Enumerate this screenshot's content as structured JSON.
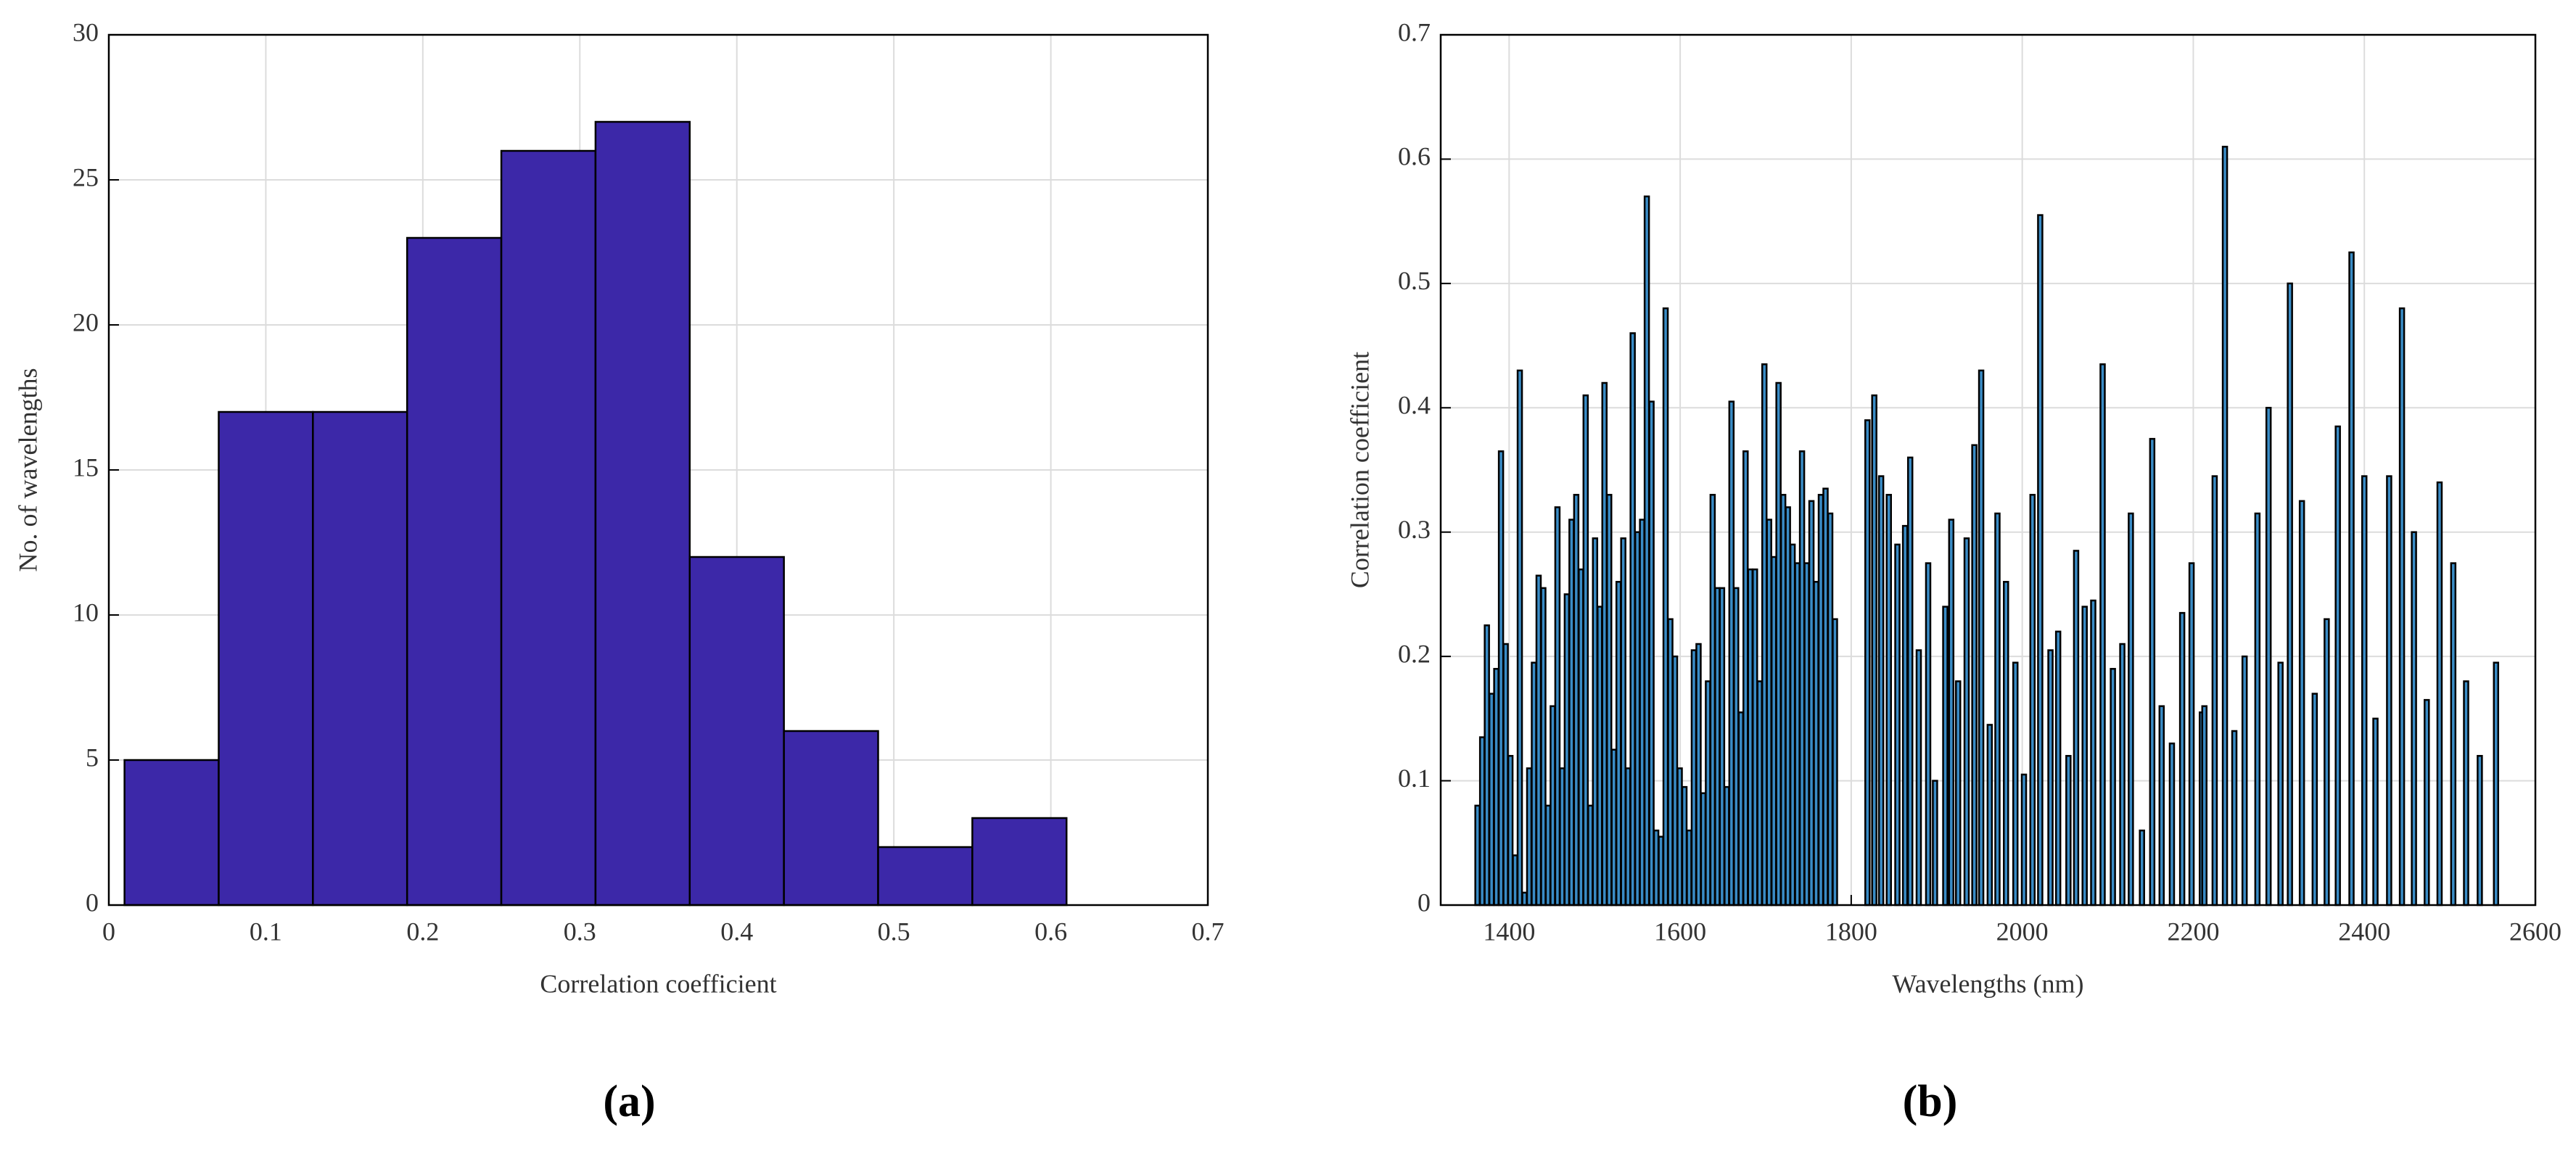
{
  "chart_data": [
    {
      "type": "histogram",
      "panel_label": "(a)",
      "xlabel": "Correlation coefficient",
      "ylabel": "No. of wavelengths",
      "bins": [
        0.01,
        0.07,
        0.13,
        0.19,
        0.25,
        0.31,
        0.37,
        0.43,
        0.49,
        0.55,
        0.61
      ],
      "counts": [
        5,
        17,
        17,
        23,
        26,
        27,
        12,
        6,
        2,
        3
      ],
      "color": "#3c28a8",
      "edgecolor": "#000000",
      "xlim": [
        0,
        0.7
      ],
      "xticks": [
        0,
        0.1,
        0.2,
        0.3,
        0.4,
        0.5,
        0.6,
        0.7
      ],
      "ylim": [
        0,
        30
      ],
      "yticks": [
        0,
        5,
        10,
        15,
        20,
        25,
        30
      ],
      "grid": true
    },
    {
      "type": "bar",
      "panel_label": "(b)",
      "xlabel": "Wavelengths (nm)",
      "ylabel": "Correlation coefficient",
      "x": [
        1363,
        1368.5,
        1374,
        1379.5,
        1385,
        1390.5,
        1396,
        1401.5,
        1407,
        1412.5,
        1418,
        1423.5,
        1429,
        1434.5,
        1440,
        1445.5,
        1451,
        1456.5,
        1462,
        1467.5,
        1473,
        1478.5,
        1484,
        1489.5,
        1495,
        1500.5,
        1506,
        1511.5,
        1517,
        1522.5,
        1528,
        1533.5,
        1539,
        1544.5,
        1550,
        1555.5,
        1561,
        1566.5,
        1572,
        1577.5,
        1583,
        1588.5,
        1594,
        1599.5,
        1605,
        1610.5,
        1616,
        1621.5,
        1627,
        1632.5,
        1638,
        1643.5,
        1649,
        1654.5,
        1660,
        1665.5,
        1671,
        1676.5,
        1682,
        1687.5,
        1693,
        1698.5,
        1704,
        1709.5,
        1715,
        1720.5,
        1726,
        1731.5,
        1737,
        1742.5,
        1748,
        1753.5,
        1759,
        1764.5,
        1770,
        1775.5,
        1781,
        1819,
        1827,
        1835,
        1844,
        1854,
        1863,
        1869,
        1879,
        1890,
        1898,
        1910,
        1917,
        1925,
        1935,
        1944,
        1952,
        1962,
        1971,
        1981,
        1992,
        2002,
        2012,
        2021,
        2033,
        2042,
        2054,
        2063,
        2073,
        2083,
        2094,
        2106,
        2117,
        2127,
        2140,
        2152,
        2163,
        2175,
        2187,
        2198,
        2210,
        2213,
        2225,
        2237,
        2248,
        2260,
        2275,
        2288,
        2302,
        2313,
        2327,
        2342,
        2356,
        2369,
        2385,
        2400,
        2413,
        2429,
        2444,
        2458,
        2473,
        2488,
        2504,
        2519,
        2535,
        2554
      ],
      "values": [
        0.08,
        0.135,
        0.225,
        0.17,
        0.19,
        0.365,
        0.21,
        0.12,
        0.04,
        0.43,
        0.01,
        0.11,
        0.195,
        0.265,
        0.255,
        0.08,
        0.16,
        0.32,
        0.11,
        0.25,
        0.31,
        0.33,
        0.27,
        0.41,
        0.08,
        0.295,
        0.24,
        0.42,
        0.33,
        0.125,
        0.26,
        0.295,
        0.11,
        0.46,
        0.3,
        0.31,
        0.57,
        0.405,
        0.06,
        0.055,
        0.48,
        0.23,
        0.2,
        0.11,
        0.095,
        0.06,
        0.205,
        0.21,
        0.09,
        0.18,
        0.33,
        0.255,
        0.255,
        0.095,
        0.405,
        0.255,
        0.155,
        0.365,
        0.27,
        0.27,
        0.18,
        0.435,
        0.31,
        0.28,
        0.42,
        0.33,
        0.32,
        0.29,
        0.275,
        0.365,
        0.275,
        0.325,
        0.26,
        0.33,
        0.335,
        0.315,
        0.23,
        0.39,
        0.41,
        0.345,
        0.33,
        0.29,
        0.305,
        0.36,
        0.205,
        0.275,
        0.1,
        0.24,
        0.31,
        0.18,
        0.295,
        0.37,
        0.43,
        0.145,
        0.315,
        0.26,
        0.195,
        0.105,
        0.33,
        0.555,
        0.205,
        0.22,
        0.12,
        0.285,
        0.24,
        0.245,
        0.435,
        0.19,
        0.21,
        0.315,
        0.06,
        0.375,
        0.16,
        0.13,
        0.235,
        0.275,
        0.155,
        0.16,
        0.345,
        0.61,
        0.14,
        0.2,
        0.315,
        0.4,
        0.195,
        0.5,
        0.325,
        0.17,
        0.23,
        0.385,
        0.525,
        0.345,
        0.15,
        0.345,
        0.48,
        0.3,
        0.165,
        0.34,
        0.275,
        0.18,
        0.12,
        0.195
      ],
      "color": "#3a8cc6",
      "edgecolor": "#000000",
      "xlim": [
        1320,
        2600
      ],
      "xticks": [
        1400,
        1600,
        1800,
        2000,
        2200,
        2400,
        2600
      ],
      "ylim": [
        0,
        0.7
      ],
      "yticks": [
        0,
        0.1,
        0.2,
        0.3,
        0.4,
        0.5,
        0.6,
        0.7
      ],
      "grid": true
    }
  ]
}
